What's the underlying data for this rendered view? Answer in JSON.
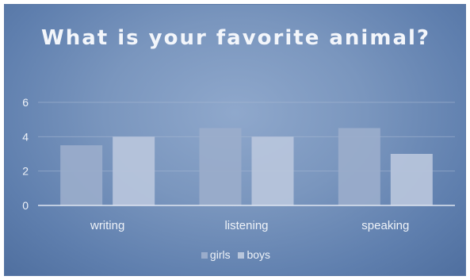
{
  "chart_data": {
    "type": "bar",
    "title": "What is your favorite animal?",
    "categories": [
      "writing",
      "listening",
      "speaking"
    ],
    "series": [
      {
        "name": "girls",
        "values": [
          3.5,
          4.5,
          4.5
        ],
        "color": "#9aaccb"
      },
      {
        "name": "boys",
        "values": [
          4.0,
          4.0,
          3.0
        ],
        "color": "#b8c6dc"
      }
    ],
    "ylim": [
      0,
      6
    ],
    "yticks": [
      0,
      2,
      4,
      6
    ],
    "grid": true,
    "legend_position": "bottom",
    "xlabel": "",
    "ylabel": ""
  }
}
